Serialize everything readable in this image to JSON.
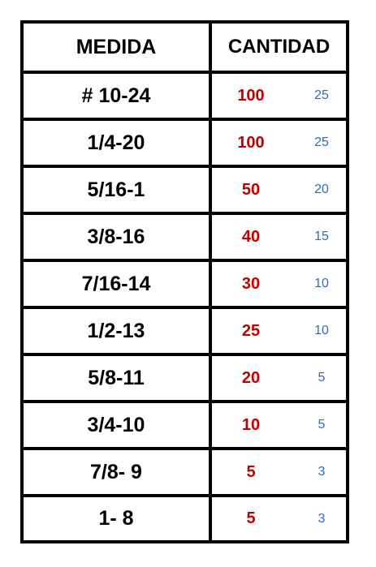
{
  "table": {
    "headers": {
      "size": "MEDIDA",
      "quantity": "CANTIDAD"
    },
    "rows": [
      {
        "size": "# 10-24",
        "quantity": "100",
        "pack": "25"
      },
      {
        "size": "1/4-20",
        "quantity": "100",
        "pack": "25"
      },
      {
        "size": "5/16-1",
        "quantity": "50",
        "pack": "20"
      },
      {
        "size": "3/8-16",
        "quantity": "40",
        "pack": "15"
      },
      {
        "size": "7/16-14",
        "quantity": "30",
        "pack": "10"
      },
      {
        "size": "1/2-13",
        "quantity": "25",
        "pack": "10"
      },
      {
        "size": "5/8-11",
        "quantity": "20",
        "pack": "5"
      },
      {
        "size": "3/4-10",
        "quantity": "10",
        "pack": "5"
      },
      {
        "size": "7/8- 9",
        "quantity": "5",
        "pack": "3"
      },
      {
        "size": "1- 8",
        "quantity": "5",
        "pack": "3"
      }
    ]
  },
  "colors": {
    "quantity": "#c00000",
    "pack": "#1f6fd1",
    "border": "#000000"
  }
}
